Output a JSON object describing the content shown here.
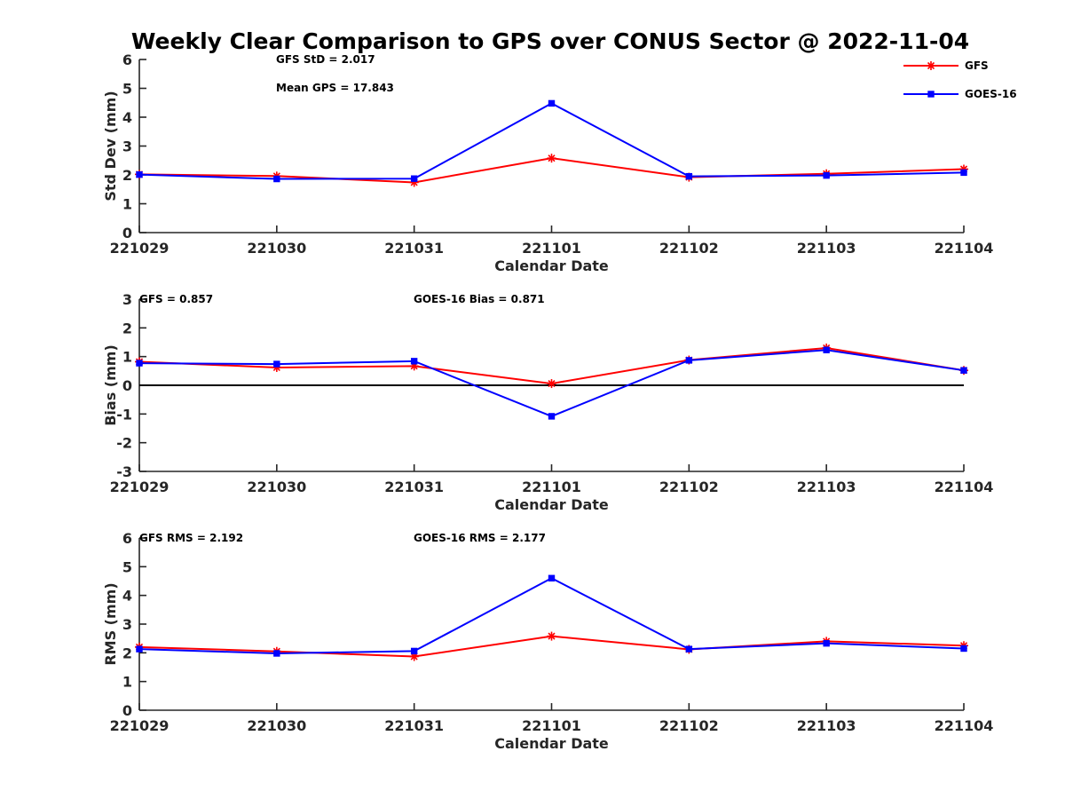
{
  "chart_data": {
    "title": "Weekly Clear Comparison to GPS over CONUS Sector @ 2022-11-04",
    "categories": [
      "221029",
      "221030",
      "221031",
      "221101",
      "221102",
      "221103",
      "221104"
    ],
    "legend": {
      "placement": "top-right",
      "entries": [
        {
          "name": "GFS",
          "color": "#ff0000",
          "marker": "asterisk"
        },
        {
          "name": "GOES-16",
          "color": "#0000ff",
          "marker": "square"
        }
      ]
    },
    "panels": [
      {
        "type": "line",
        "ylabel": "Std Dev (mm)",
        "xlabel": "Calendar Date",
        "ylim": [
          0,
          6
        ],
        "yticks": [
          0,
          1,
          2,
          3,
          4,
          5,
          6
        ],
        "annotations": [
          "GFS StD = 2.017",
          "Mean GPS = 17.843"
        ],
        "zero_line": false,
        "series": [
          {
            "name": "GFS",
            "values": [
              2.02,
              1.96,
              1.74,
              2.58,
              1.92,
              2.04,
              2.2
            ]
          },
          {
            "name": "GOES-16",
            "values": [
              2.01,
              1.86,
              1.87,
              4.48,
              1.95,
              1.98,
              2.08
            ]
          }
        ]
      },
      {
        "type": "line",
        "ylabel": "Bias (mm)",
        "xlabel": "Calendar Date",
        "ylim": [
          -3,
          3
        ],
        "yticks": [
          -3,
          -2,
          -1,
          0,
          1,
          2,
          3
        ],
        "annotations": [
          "GFS = 0.857",
          "GOES-16 Bias  = 0.871"
        ],
        "zero_line": true,
        "series": [
          {
            "name": "GFS",
            "values": [
              0.82,
              0.62,
              0.67,
              0.06,
              0.88,
              1.3,
              0.52
            ]
          },
          {
            "name": "GOES-16",
            "values": [
              0.77,
              0.74,
              0.84,
              -1.08,
              0.87,
              1.23,
              0.52
            ]
          }
        ]
      },
      {
        "type": "line",
        "ylabel": "RMS (mm)",
        "xlabel": "Calendar Date",
        "ylim": [
          0,
          6
        ],
        "yticks": [
          0,
          1,
          2,
          3,
          4,
          5,
          6
        ],
        "annotations": [
          "GFS RMS = 2.192",
          "GOES-16 RMS = 2.177"
        ],
        "zero_line": false,
        "series": [
          {
            "name": "GFS",
            "values": [
              2.2,
              2.05,
              1.87,
              2.58,
              2.12,
              2.4,
              2.25
            ]
          },
          {
            "name": "GOES-16",
            "values": [
              2.13,
              1.98,
              2.06,
              4.6,
              2.13,
              2.33,
              2.15
            ]
          }
        ]
      }
    ]
  }
}
